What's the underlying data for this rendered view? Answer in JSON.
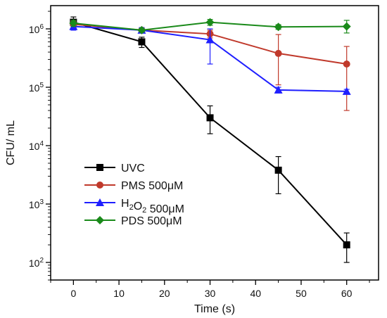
{
  "chart_data": {
    "type": "line",
    "xlabel": "Time (s)",
    "ylabel": "CFU/ mL",
    "y_scale": "log",
    "xlim": [
      -5,
      67
    ],
    "ylim": [
      50,
      2500000
    ],
    "x_ticks": [
      0,
      10,
      20,
      30,
      40,
      50,
      60
    ],
    "x_tick_labels": [
      "0",
      "10",
      "20",
      "30",
      "40",
      "50",
      "60"
    ],
    "y_ticks": [
      100,
      1000,
      10000,
      100000,
      1000000
    ],
    "y_tick_labels": [
      {
        "base": "10",
        "exp": "2"
      },
      {
        "base": "10",
        "exp": "3"
      },
      {
        "base": "10",
        "exp": "4"
      },
      {
        "base": "10",
        "exp": "5"
      },
      {
        "base": "10",
        "exp": "6"
      }
    ],
    "legend_position": "lower-left",
    "series": [
      {
        "name": "UVC",
        "legend_parts": [
          {
            "text": "UVC",
            "sub": false
          }
        ],
        "color": "#000000",
        "marker": "square",
        "x": [
          0,
          15,
          30,
          45,
          60
        ],
        "y": [
          1300000,
          600000,
          30000,
          3800,
          200
        ],
        "err_low": [
          1000000,
          480000,
          16000,
          1500,
          100
        ],
        "err_high": [
          1600000,
          720000,
          48000,
          6500,
          320
        ]
      },
      {
        "name": "PMS 500μM",
        "legend_parts": [
          {
            "text": "PMS 500μM",
            "sub": false
          }
        ],
        "color": "#c0392b",
        "marker": "circle",
        "x": [
          0,
          15,
          30,
          45,
          60
        ],
        "y": [
          1200000,
          950000,
          820000,
          380000,
          250000
        ],
        "err_low": [
          1050000,
          850000,
          700000,
          110000,
          40000
        ],
        "err_high": [
          1350000,
          1050000,
          950000,
          800000,
          500000
        ]
      },
      {
        "name": "H2O2 500μM",
        "legend_parts": [
          {
            "text": "H",
            "sub": false
          },
          {
            "text": "2",
            "sub": true
          },
          {
            "text": "O",
            "sub": false
          },
          {
            "text": "2",
            "sub": true
          },
          {
            "text": " 500μM",
            "sub": false
          }
        ],
        "color": "#1f1fff",
        "marker": "triangle",
        "x": [
          0,
          15,
          30,
          45,
          60
        ],
        "y": [
          1100000,
          950000,
          650000,
          90000,
          85000
        ],
        "err_low": [
          950000,
          850000,
          250000,
          80000,
          78000
        ],
        "err_high": [
          1250000,
          1050000,
          1000000,
          100000,
          92000
        ]
      },
      {
        "name": "PDS 500μM",
        "legend_parts": [
          {
            "text": "PDS 500μM",
            "sub": false
          }
        ],
        "color": "#1a8a1a",
        "marker": "diamond",
        "x": [
          0,
          15,
          30,
          45,
          60
        ],
        "y": [
          1250000,
          950000,
          1300000,
          1080000,
          1100000
        ],
        "err_low": [
          1100000,
          880000,
          1150000,
          980000,
          850000
        ],
        "err_high": [
          1400000,
          1020000,
          1450000,
          1180000,
          1400000
        ]
      }
    ]
  }
}
